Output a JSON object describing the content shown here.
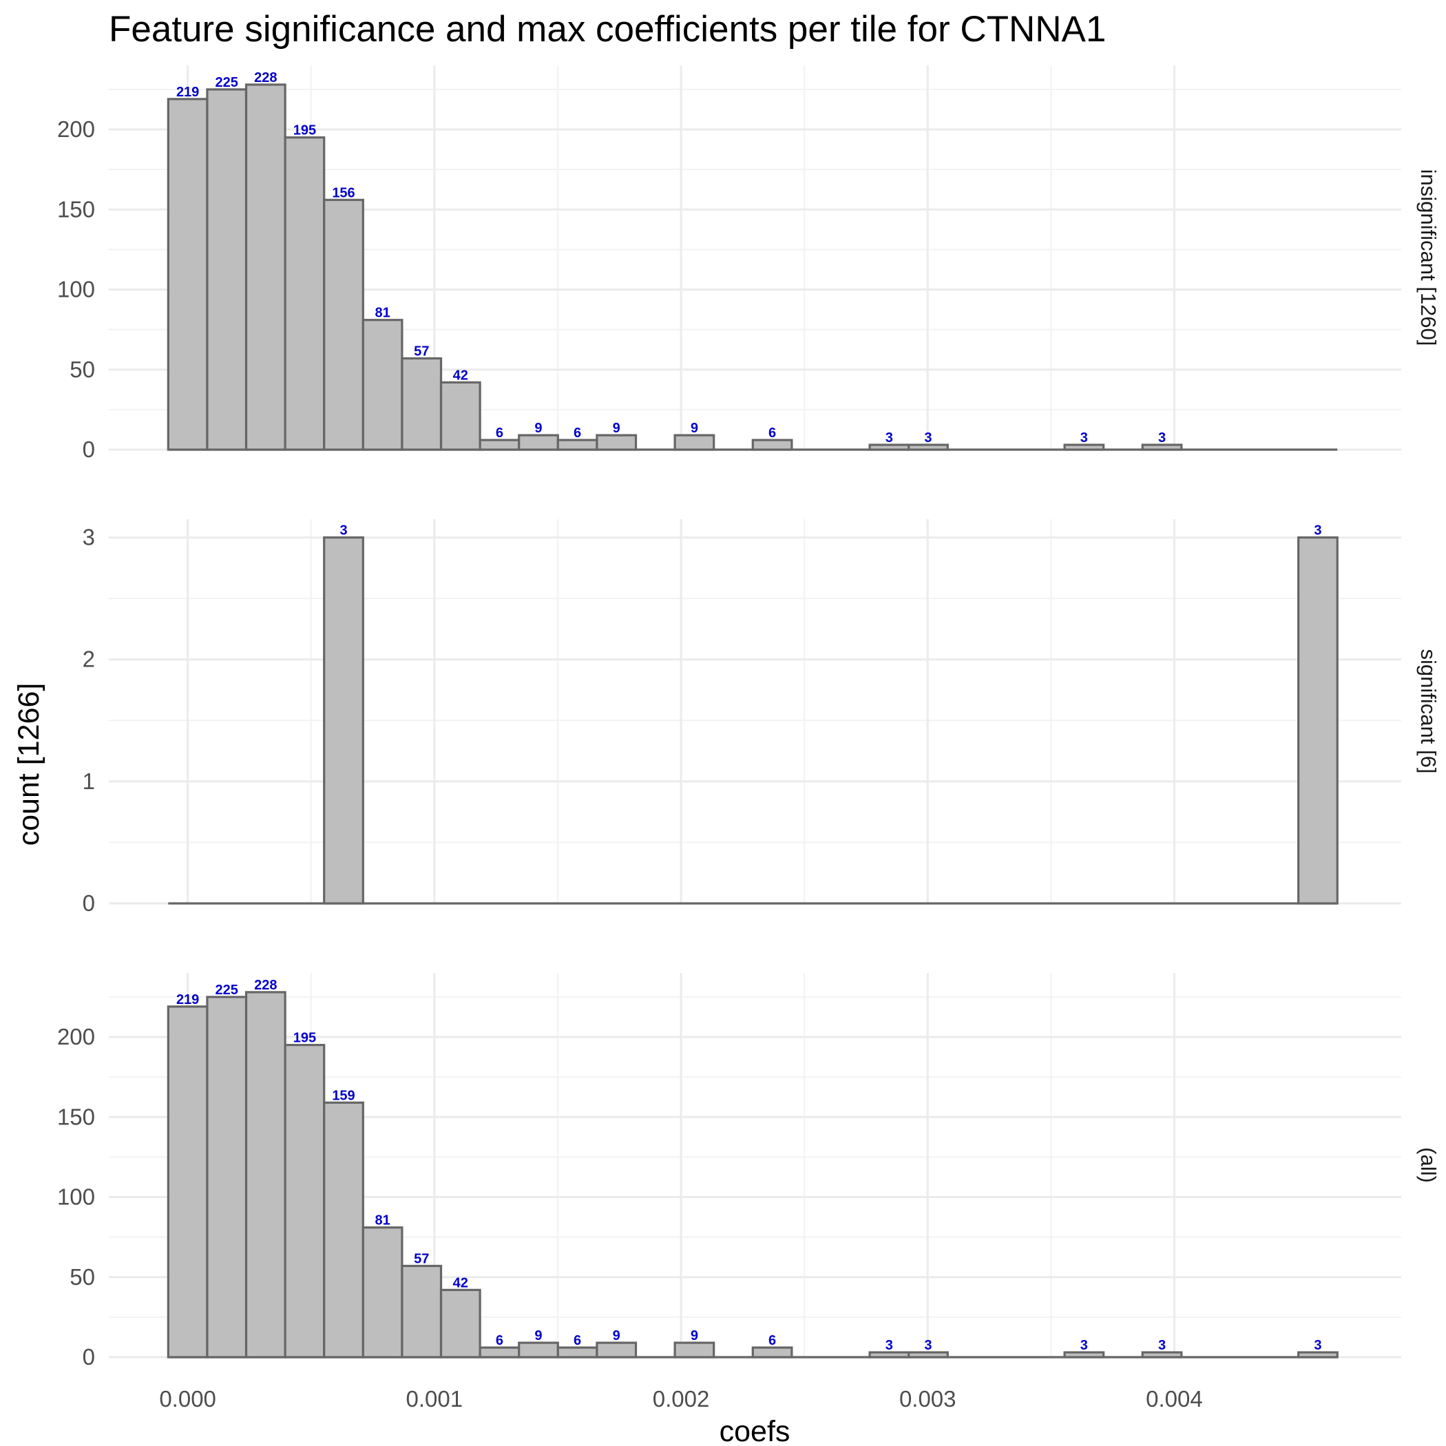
{
  "chart_data": {
    "type": "bar",
    "title": "Feature significance and max coefficients per tile for CTNNA1",
    "xlabel": "coefs",
    "ylabel": "count [1266]",
    "xlim": [
      -0.00032,
      0.00492
    ],
    "x_ticks": [
      "0.000",
      "0.001",
      "0.002",
      "0.003",
      "0.004"
    ],
    "x_tick_values": [
      0,
      0.001,
      0.002,
      0.003,
      0.004
    ],
    "bin_width": 0.000158,
    "bin_start": -7.9e-05,
    "bin_count": 30,
    "grid": true,
    "bar_fill": "#bebebe",
    "bar_stroke": "#666666",
    "label_color": "#0000cc",
    "panels": [
      {
        "strip": "insignificant [1260]",
        "ylim": [
          0,
          240
        ],
        "y_ticks": [
          "0",
          "50",
          "100",
          "150",
          "200"
        ],
        "y_tick_values": [
          0,
          50,
          100,
          150,
          200
        ],
        "values": [
          219,
          225,
          228,
          195,
          156,
          81,
          57,
          42,
          6,
          9,
          6,
          9,
          0,
          9,
          0,
          6,
          0,
          0,
          3,
          3,
          0,
          0,
          0,
          3,
          0,
          3,
          0,
          0,
          0,
          0
        ]
      },
      {
        "strip": "significant [6]",
        "ylim": [
          0,
          3.15
        ],
        "y_ticks": [
          "0",
          "1",
          "2",
          "3"
        ],
        "y_tick_values": [
          0,
          1,
          2,
          3
        ],
        "values": [
          0,
          0,
          0,
          0,
          3,
          0,
          0,
          0,
          0,
          0,
          0,
          0,
          0,
          0,
          0,
          0,
          0,
          0,
          0,
          0,
          0,
          0,
          0,
          0,
          0,
          0,
          0,
          0,
          0,
          3
        ]
      },
      {
        "strip": "(all)",
        "ylim": [
          0,
          240
        ],
        "y_ticks": [
          "0",
          "50",
          "100",
          "150",
          "200"
        ],
        "y_tick_values": [
          0,
          50,
          100,
          150,
          200
        ],
        "values": [
          219,
          225,
          228,
          195,
          159,
          81,
          57,
          42,
          6,
          9,
          6,
          9,
          0,
          9,
          0,
          6,
          0,
          0,
          3,
          3,
          0,
          0,
          0,
          3,
          0,
          3,
          0,
          0,
          0,
          3
        ]
      }
    ]
  }
}
